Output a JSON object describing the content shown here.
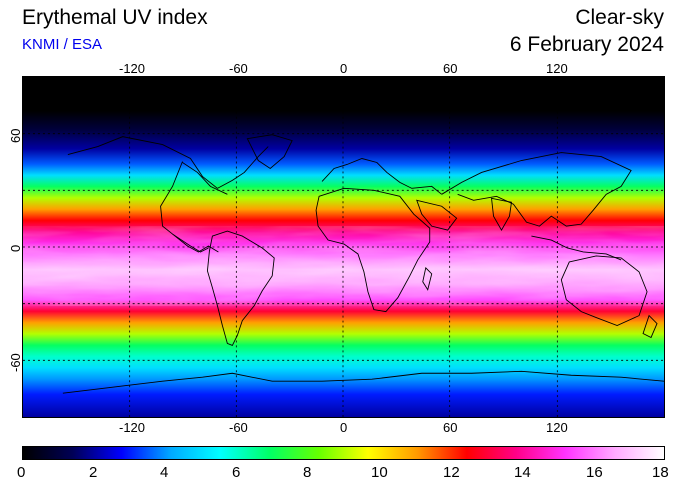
{
  "header": {
    "title": "Erythemal UV index",
    "credit": "KNMI / ESA",
    "mode": "Clear-sky",
    "date": "6 February 2024"
  },
  "map": {
    "lon_ticks": [
      "-120",
      "-60",
      "0",
      "60",
      "120"
    ],
    "lat_ticks": [
      "60",
      "0",
      "-60"
    ],
    "lon_values": [
      -120,
      -60,
      0,
      60,
      120
    ],
    "lat_values": [
      60,
      0,
      -60
    ],
    "lon_range": [
      -180,
      180
    ],
    "lat_range": [
      -90,
      90
    ],
    "grid": "dotted",
    "uv_by_latitude": [
      {
        "lat": 90,
        "uv": 0
      },
      {
        "lat": 72,
        "uv": 0
      },
      {
        "lat": 62,
        "uv": 1
      },
      {
        "lat": 52,
        "uv": 2
      },
      {
        "lat": 44,
        "uv": 3.5
      },
      {
        "lat": 38,
        "uv": 5
      },
      {
        "lat": 32,
        "uv": 7
      },
      {
        "lat": 26,
        "uv": 9
      },
      {
        "lat": 20,
        "uv": 11
      },
      {
        "lat": 14,
        "uv": 12.5
      },
      {
        "lat": 8,
        "uv": 14
      },
      {
        "lat": 2,
        "uv": 15
      },
      {
        "lat": -4,
        "uv": 16
      },
      {
        "lat": -12,
        "uv": 17
      },
      {
        "lat": -20,
        "uv": 16.5
      },
      {
        "lat": -28,
        "uv": 15.5
      },
      {
        "lat": -34,
        "uv": 13
      },
      {
        "lat": -40,
        "uv": 11
      },
      {
        "lat": -46,
        "uv": 9
      },
      {
        "lat": -52,
        "uv": 7
      },
      {
        "lat": -58,
        "uv": 6
      },
      {
        "lat": -64,
        "uv": 5
      },
      {
        "lat": -70,
        "uv": 4
      },
      {
        "lat": -78,
        "uv": 3
      },
      {
        "lat": -90,
        "uv": 2
      }
    ]
  },
  "colorbar": {
    "labels": [
      "0",
      "2",
      "4",
      "6",
      "8",
      "10",
      "12",
      "14",
      "16",
      "18"
    ],
    "min": 0,
    "max": 18,
    "colors": [
      "#000000",
      "#000055",
      "#0000ff",
      "#00aaff",
      "#00ffff",
      "#00ff66",
      "#66ff00",
      "#ffff00",
      "#ff9900",
      "#ff0000",
      "#ff0088",
      "#ff33ff",
      "#ffaaff",
      "#ffffff"
    ]
  }
}
